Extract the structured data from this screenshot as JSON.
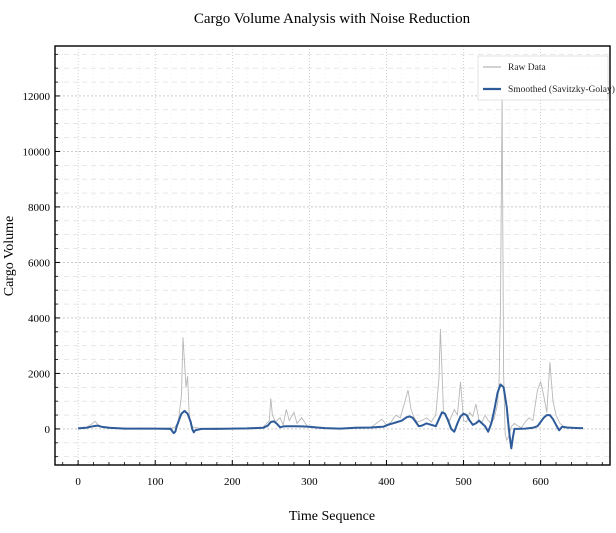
{
  "chart_data": {
    "type": "line",
    "title": "Cargo Volume Analysis with Noise Reduction",
    "xlabel": "Time Sequence",
    "ylabel": "Cargo Volume",
    "xlim": [
      -30,
      690
    ],
    "ylim": [
      -1300,
      13800
    ],
    "x_ticks": [
      0,
      100,
      200,
      300,
      400,
      500,
      600
    ],
    "y_ticks": [
      0,
      2000,
      4000,
      6000,
      8000,
      10000,
      12000
    ],
    "grid": true,
    "legend_position": "top-right",
    "series": [
      {
        "name": "Raw Data",
        "color": "#b8b8b8",
        "style": "thin",
        "x": [
          0,
          10,
          18,
          22,
          26,
          32,
          40,
          55,
          70,
          85,
          100,
          115,
          125,
          130,
          134,
          136,
          138,
          140,
          142,
          144,
          146,
          150,
          160,
          180,
          200,
          220,
          240,
          248,
          250,
          252,
          256,
          262,
          266,
          270,
          274,
          280,
          284,
          290,
          296,
          300,
          310,
          320,
          340,
          360,
          380,
          394,
          400,
          406,
          412,
          418,
          424,
          428,
          432,
          436,
          440,
          446,
          452,
          458,
          464,
          468,
          470,
          472,
          474,
          478,
          482,
          488,
          492,
          496,
          500,
          504,
          508,
          512,
          516,
          520,
          524,
          528,
          532,
          536,
          540,
          544,
          546,
          548,
          550,
          552,
          554,
          556,
          558,
          562,
          566,
          570,
          575,
          580,
          585,
          590,
          596,
          600,
          604,
          608,
          612,
          614,
          616,
          620,
          625,
          630,
          640,
          650,
          655
        ],
        "y": [
          10,
          40,
          180,
          280,
          150,
          60,
          20,
          30,
          20,
          30,
          20,
          30,
          40,
          250,
          1200,
          3300,
          2400,
          1500,
          1900,
          600,
          150,
          50,
          20,
          30,
          20,
          40,
          60,
          300,
          1100,
          500,
          250,
          400,
          150,
          700,
          300,
          600,
          200,
          400,
          150,
          60,
          40,
          30,
          20,
          40,
          60,
          350,
          150,
          250,
          500,
          400,
          1000,
          1400,
          700,
          400,
          250,
          300,
          400,
          250,
          500,
          1800,
          3600,
          2100,
          600,
          450,
          300,
          700,
          500,
          1700,
          300,
          250,
          600,
          450,
          900,
          300,
          250,
          500,
          300,
          200,
          400,
          900,
          1600,
          4500,
          12000,
          2000,
          -200,
          -400,
          -300,
          80,
          200,
          120,
          40,
          250,
          400,
          300,
          1400,
          1700,
          1200,
          600,
          2400,
          1700,
          1000,
          500,
          200,
          80,
          40,
          20,
          10
        ],
        "description_of_mark": "thin gray"
      },
      {
        "name": "Smoothed (Savitzky-Golay)",
        "color": "#2e5b9a",
        "style": "thick",
        "x": [
          0,
          10,
          20,
          25,
          30,
          40,
          60,
          80,
          100,
          120,
          124,
          126,
          128,
          130,
          134,
          138,
          142,
          146,
          148,
          150,
          152,
          160,
          180,
          200,
          220,
          240,
          246,
          250,
          254,
          258,
          262,
          266,
          272,
          280,
          290,
          300,
          310,
          320,
          340,
          360,
          380,
          396,
          402,
          408,
          414,
          420,
          426,
          430,
          434,
          438,
          442,
          446,
          452,
          458,
          464,
          468,
          472,
          476,
          480,
          484,
          488,
          492,
          496,
          500,
          504,
          508,
          512,
          516,
          520,
          524,
          528,
          532,
          536,
          540,
          544,
          548,
          552,
          556,
          558,
          560,
          562,
          564,
          566,
          570,
          580,
          590,
          596,
          600,
          604,
          608,
          612,
          616,
          620,
          624,
          628,
          634,
          640,
          650,
          655
        ],
        "y": [
          20,
          40,
          100,
          120,
          80,
          40,
          10,
          10,
          10,
          0,
          -150,
          -100,
          100,
          250,
          550,
          650,
          550,
          250,
          0,
          -120,
          -50,
          0,
          0,
          10,
          20,
          40,
          120,
          250,
          270,
          180,
          60,
          90,
          100,
          100,
          90,
          80,
          50,
          30,
          10,
          40,
          50,
          80,
          150,
          200,
          250,
          300,
          420,
          450,
          400,
          250,
          100,
          120,
          200,
          150,
          100,
          350,
          600,
          550,
          300,
          0,
          -100,
          200,
          450,
          550,
          500,
          300,
          150,
          200,
          300,
          200,
          100,
          -100,
          200,
          700,
          1300,
          1600,
          1500,
          800,
          200,
          -300,
          -700,
          -300,
          0,
          0,
          10,
          40,
          100,
          250,
          400,
          500,
          500,
          350,
          150,
          -50,
          80,
          50,
          40,
          30,
          30
        ],
        "description_of_mark": "thick blue"
      }
    ]
  }
}
